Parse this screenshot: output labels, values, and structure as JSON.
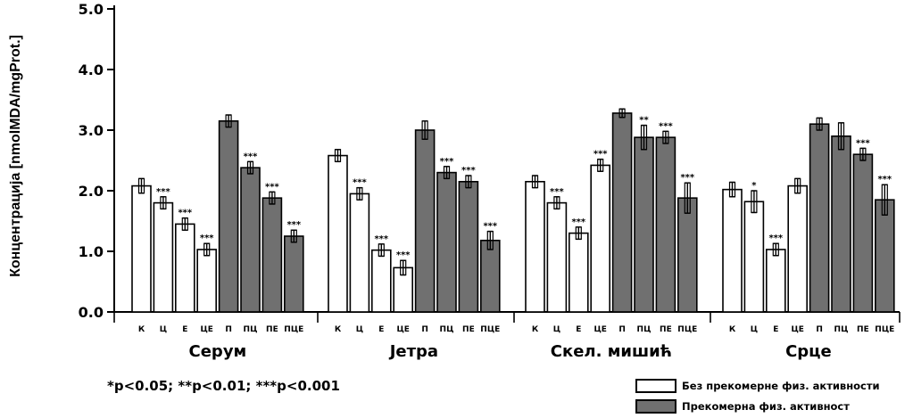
{
  "colors": {
    "without": "#ffffff",
    "with": "#707070",
    "ink": "#000000"
  },
  "footnote": "*p<0.05; **p<0.01; ***p<0.001",
  "legend": [
    {
      "label": "Без прекомерне физ. активности",
      "fill": "#ffffff"
    },
    {
      "label": "Прекомерна физ. активност",
      "fill": "#707070"
    }
  ],
  "chart_data": {
    "type": "bar",
    "title": "",
    "xlabel": "",
    "ylabel": "Концентрација [nmolMDA/mgProt.]",
    "ylim": [
      0,
      5.0
    ],
    "yticks": [
      "0.0",
      "1.0",
      "2.0",
      "3.0",
      "4.0",
      "5.0"
    ],
    "grid": false,
    "legend_position": "bottom-right",
    "groups": [
      {
        "name": "Серум",
        "bars": [
          {
            "label": "К",
            "value": 2.08,
            "err": 0.12,
            "series": "without",
            "sig": ""
          },
          {
            "label": "Ц",
            "value": 1.8,
            "err": 0.1,
            "series": "without",
            "sig": "***"
          },
          {
            "label": "Е",
            "value": 1.45,
            "err": 0.1,
            "series": "without",
            "sig": "***"
          },
          {
            "label": "ЦЕ",
            "value": 1.03,
            "err": 0.1,
            "series": "without",
            "sig": "***"
          },
          {
            "label": "П",
            "value": 3.15,
            "err": 0.1,
            "series": "with",
            "sig": ""
          },
          {
            "label": "ПЦ",
            "value": 2.38,
            "err": 0.1,
            "series": "with",
            "sig": "***"
          },
          {
            "label": "ПЕ",
            "value": 1.88,
            "err": 0.1,
            "series": "with",
            "sig": "***"
          },
          {
            "label": "ПЦЕ",
            "value": 1.25,
            "err": 0.1,
            "series": "with",
            "sig": "***"
          }
        ]
      },
      {
        "name": "Јетра",
        "bars": [
          {
            "label": "К",
            "value": 2.58,
            "err": 0.1,
            "series": "without",
            "sig": ""
          },
          {
            "label": "Ц",
            "value": 1.95,
            "err": 0.1,
            "series": "without",
            "sig": "***"
          },
          {
            "label": "Е",
            "value": 1.02,
            "err": 0.1,
            "series": "without",
            "sig": "***"
          },
          {
            "label": "ЦЕ",
            "value": 0.73,
            "err": 0.12,
            "series": "without",
            "sig": "***"
          },
          {
            "label": "П",
            "value": 3.0,
            "err": 0.15,
            "series": "with",
            "sig": ""
          },
          {
            "label": "ПЦ",
            "value": 2.3,
            "err": 0.1,
            "series": "with",
            "sig": "***"
          },
          {
            "label": "ПЕ",
            "value": 2.15,
            "err": 0.1,
            "series": "with",
            "sig": "***"
          },
          {
            "label": "ПЦЕ",
            "value": 1.18,
            "err": 0.15,
            "series": "with",
            "sig": "***"
          }
        ]
      },
      {
        "name": "Скел. мишић",
        "bars": [
          {
            "label": "К",
            "value": 2.15,
            "err": 0.1,
            "series": "without",
            "sig": ""
          },
          {
            "label": "Ц",
            "value": 1.8,
            "err": 0.1,
            "series": "without",
            "sig": "***"
          },
          {
            "label": "Е",
            "value": 1.3,
            "err": 0.1,
            "series": "without",
            "sig": "***"
          },
          {
            "label": "ЦЕ",
            "value": 2.42,
            "err": 0.1,
            "series": "without",
            "sig": "***"
          },
          {
            "label": "П",
            "value": 3.28,
            "err": 0.07,
            "series": "with",
            "sig": ""
          },
          {
            "label": "ПЦ",
            "value": 2.88,
            "err": 0.2,
            "series": "with",
            "sig": "**"
          },
          {
            "label": "ПЕ",
            "value": 2.88,
            "err": 0.1,
            "series": "with",
            "sig": "***"
          },
          {
            "label": "ПЦЕ",
            "value": 1.88,
            "err": 0.25,
            "series": "with",
            "sig": "***"
          }
        ]
      },
      {
        "name": "Срце",
        "bars": [
          {
            "label": "К",
            "value": 2.02,
            "err": 0.12,
            "series": "without",
            "sig": ""
          },
          {
            "label": "Ц",
            "value": 1.82,
            "err": 0.18,
            "series": "without",
            "sig": "*"
          },
          {
            "label": "Е",
            "value": 1.03,
            "err": 0.1,
            "series": "without",
            "sig": "***"
          },
          {
            "label": "ЦЕ",
            "value": 2.08,
            "err": 0.12,
            "series": "without",
            "sig": ""
          },
          {
            "label": "П",
            "value": 3.1,
            "err": 0.1,
            "series": "with",
            "sig": ""
          },
          {
            "label": "ПЦ",
            "value": 2.9,
            "err": 0.22,
            "series": "with",
            "sig": ""
          },
          {
            "label": "ПЕ",
            "value": 2.6,
            "err": 0.1,
            "series": "with",
            "sig": "***"
          },
          {
            "label": "ПЦЕ",
            "value": 1.85,
            "err": 0.25,
            "series": "with",
            "sig": "***"
          }
        ]
      }
    ]
  }
}
